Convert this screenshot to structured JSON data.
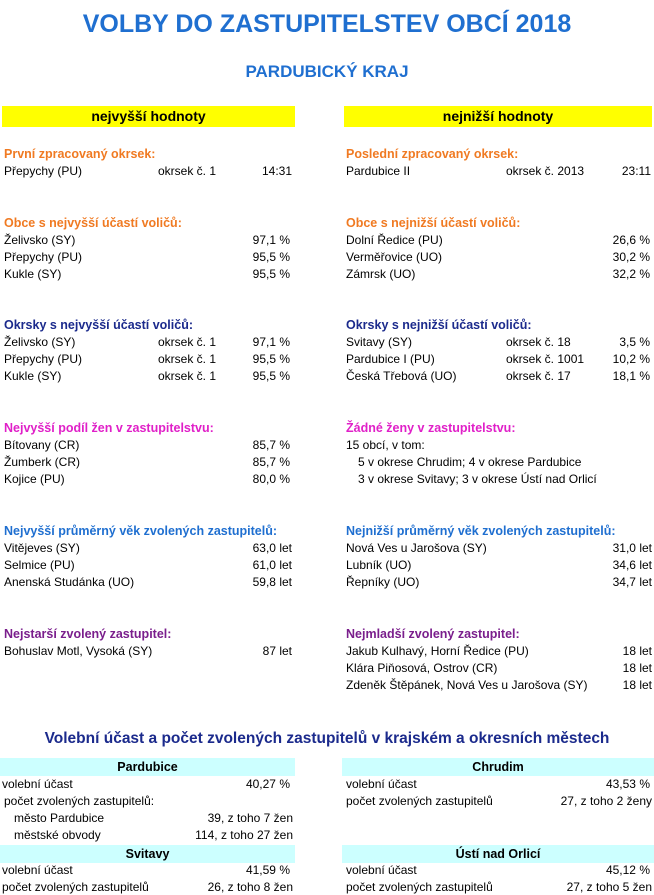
{
  "title": "VOLBY DO ZASTUPITELSTEV OBCÍ 2018",
  "subtitle": "PARDUBICKÝ KRAJ",
  "headers": {
    "left": "nejvyšší hodnoty",
    "right": "nejnižší hodnoty"
  },
  "first_district": {
    "heading": "První zpracovaný okrsek:",
    "name": "Přepychy (PU)",
    "district": "okrsek č. 1",
    "time": "14:31"
  },
  "last_district": {
    "heading": "Poslední zpracovaný okrsek:",
    "name": "Pardubice II",
    "district": "okrsek č. 2013",
    "time": "23:11"
  },
  "top_turnout_municipalities": {
    "heading": "Obce s nejvyšší účastí voličů:",
    "rows": [
      {
        "name": "Želivsko (SY)",
        "value": "97,1 %"
      },
      {
        "name": "Přepychy (PU)",
        "value": "95,5 %"
      },
      {
        "name": "Kukle (SY)",
        "value": "95,5 %"
      }
    ]
  },
  "low_turnout_municipalities": {
    "heading": "Obce s nejnižší účastí voličů:",
    "rows": [
      {
        "name": "Dolní Ředice (PU)",
        "value": "26,6 %"
      },
      {
        "name": "Verměřovice (UO)",
        "value": "30,2 %"
      },
      {
        "name": "Zámrsk (UO)",
        "value": "32,2 %"
      }
    ]
  },
  "top_turnout_districts": {
    "heading": "Okrsky s nejvyšší účastí voličů:",
    "rows": [
      {
        "name": "Želivsko (SY)",
        "district": "okrsek č. 1",
        "value": "97,1 %"
      },
      {
        "name": "Přepychy (PU)",
        "district": "okrsek č. 1",
        "value": "95,5 %"
      },
      {
        "name": "Kukle (SY)",
        "district": "okrsek č. 1",
        "value": "95,5 %"
      }
    ]
  },
  "low_turnout_districts": {
    "heading": "Okrsky s nejnižší účastí voličů:",
    "rows": [
      {
        "name": "Svitavy (SY)",
        "district": "okrsek č. 18",
        "value": "3,5 %"
      },
      {
        "name": "Pardubice I (PU)",
        "district": "okrsek č. 1001",
        "value": "10,2 %"
      },
      {
        "name": "Česká Třebová (UO)",
        "district": "okrsek č. 17",
        "value": "18,1 %"
      }
    ]
  },
  "women_top": {
    "heading": "Nejvyšší podíl žen v zastupitelstvu:",
    "rows": [
      {
        "name": "Bítovany (CR)",
        "value": "85,7 %"
      },
      {
        "name": "Žumberk (CR)",
        "value": "85,7 %"
      },
      {
        "name": "Kojice (PU)",
        "value": "80,0 %"
      }
    ]
  },
  "women_none": {
    "heading": "Žádné ženy v zastupitelstvu:",
    "lines": [
      "15 obcí, v tom:",
      "5 v okrese Chrudim; 4 v okrese Pardubice",
      "3 v okrese Svitavy; 3 v okrese Ústí nad Orlicí"
    ]
  },
  "age_top": {
    "heading": "Nejvyšší průměrný věk zvolených zastupitelů:",
    "rows": [
      {
        "name": "Vitějeves (SY)",
        "value": "63,0 let"
      },
      {
        "name": "Selmice (PU)",
        "value": "61,0 let"
      },
      {
        "name": "Anenská Studánka (UO)",
        "value": "59,8 let"
      }
    ]
  },
  "age_low": {
    "heading": "Nejnižší průměrný věk zvolených zastupitelů:",
    "rows": [
      {
        "name": "Nová Ves u Jarošova (SY)",
        "value": "31,0 let"
      },
      {
        "name": "Lubník (UO)",
        "value": "34,6 let"
      },
      {
        "name": "Řepníky (UO)",
        "value": "34,7 let"
      }
    ]
  },
  "oldest": {
    "heading": "Nejstarší zvolený zastupitel:",
    "rows": [
      {
        "name": "Bohuslav Motl, Vysoká (SY)",
        "value": "87 let"
      }
    ]
  },
  "youngest": {
    "heading": "Nejmladší zvolený zastupitel:",
    "rows": [
      {
        "name": "Jakub Kulhavý, Horní Ředice (PU)",
        "value": "18 let"
      },
      {
        "name": "Klára Piňosová, Ostrov (CR)",
        "value": "18 let"
      },
      {
        "name": "Zdeněk Štěpánek, Nová Ves u Jarošova (SY)",
        "value": "18 let"
      }
    ]
  },
  "cities_title": "Volební účast a počet zvolených zastupitelů v krajském a okresních městech",
  "cities": {
    "pardubice": {
      "name": "Pardubice",
      "turnout_label": "volební účast",
      "turnout": "40,27 %",
      "elected_label": "počet zvolených zastupitelů:",
      "sub1_label": "město Pardubice",
      "sub1_value": "39, z toho 7 žen",
      "sub2_label": "městské obvody",
      "sub2_value": "114, z toho 27 žen"
    },
    "chrudim": {
      "name": "Chrudim",
      "turnout_label": "volební účast",
      "turnout": "43,53 %",
      "elected_label": "počet zvolených zastupitelů",
      "elected": "27, z toho 2 ženy"
    },
    "svitavy": {
      "name": "Svitavy",
      "turnout_label": "volební účast",
      "turnout": "41,59 %",
      "elected_label": "počet zvolených zastupitelů",
      "elected": "26, z toho 8 žen"
    },
    "usti": {
      "name": "Ústí nad Orlicí",
      "turnout_label": "volební účast",
      "turnout": "45,12 %",
      "elected_label": "počet zvolených zastupitelů",
      "elected": "27, z toho 5 žen"
    }
  }
}
